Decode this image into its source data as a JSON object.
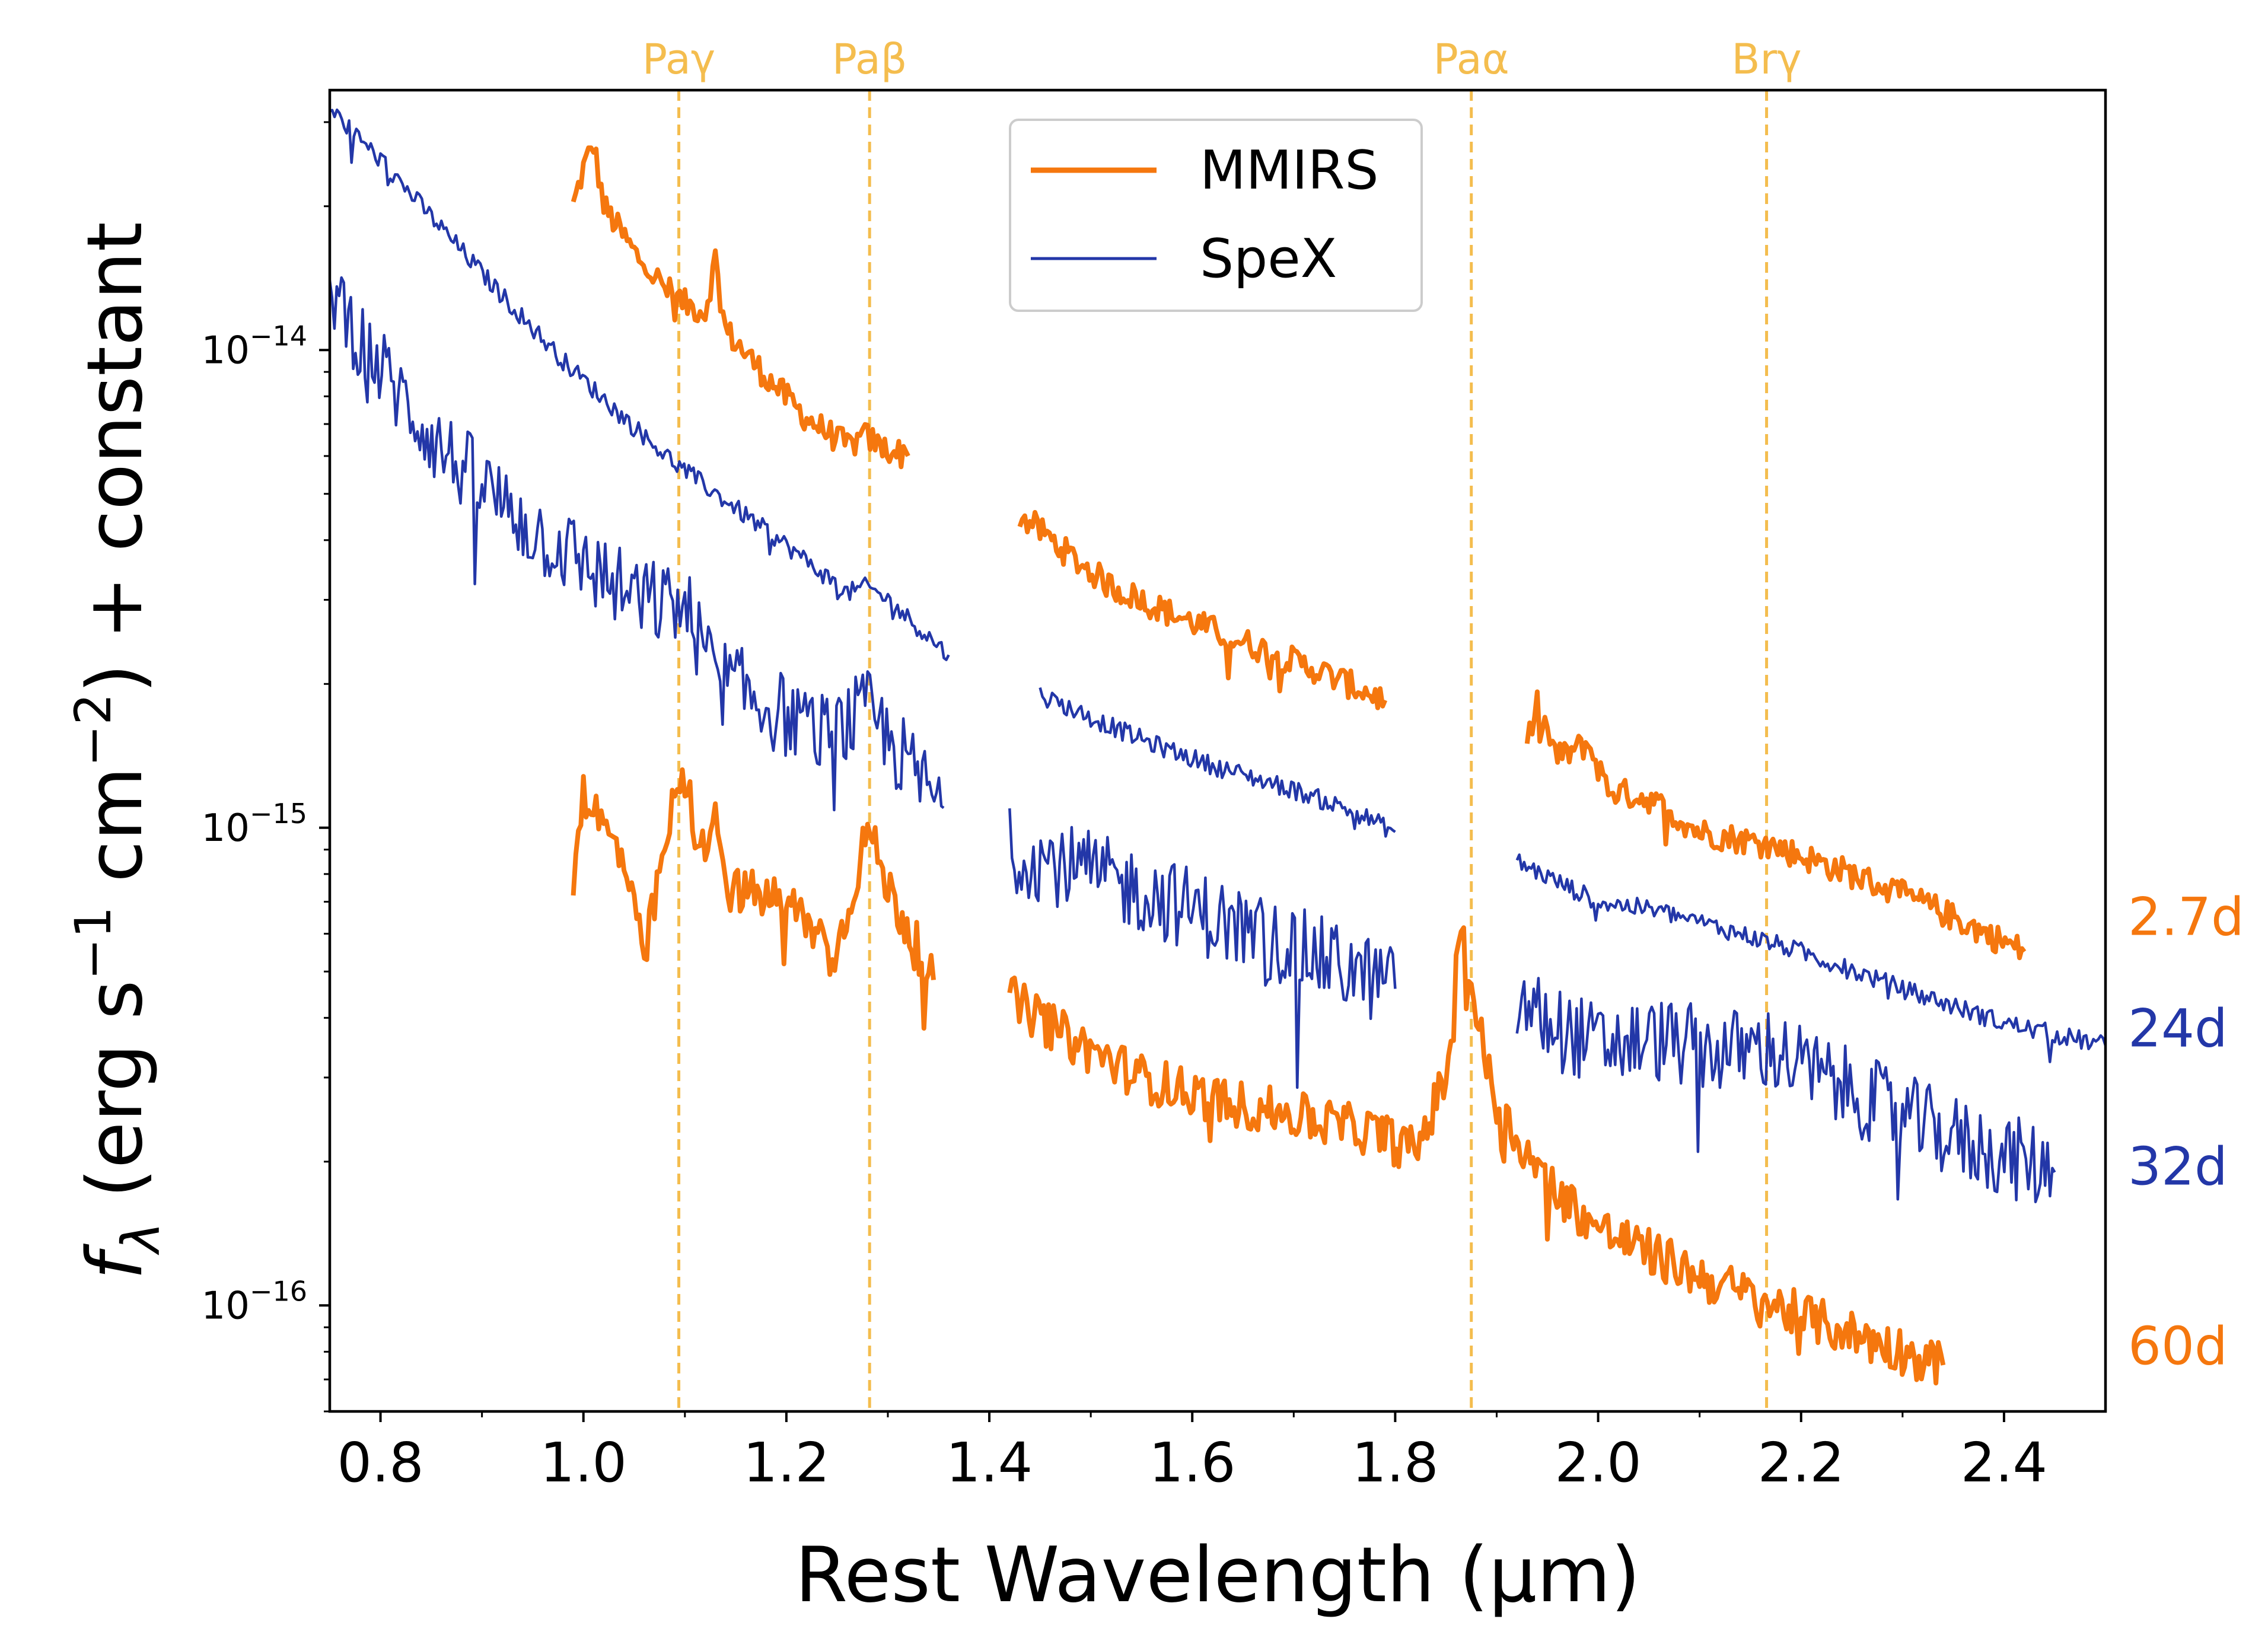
{
  "chart_data": {
    "type": "line",
    "title": "",
    "xlabel": "Rest Wavelength (μm)",
    "ylabel": "f_λ (erg s⁻¹ cm⁻²) + constant",
    "ylabel_parts": {
      "f": "f",
      "lambda_sub": "λ",
      "open": " (erg s",
      "s_exp": "−1",
      "cm": " cm",
      "cm_exp": "−2",
      "close": ") + constant"
    },
    "xlim": [
      0.75,
      2.5
    ],
    "ylim": [
      6e-17,
      3.5e-14
    ],
    "yscale": "log",
    "xticks": [
      "0.8",
      "1.0",
      "1.2",
      "1.4",
      "1.6",
      "1.8",
      "2.0",
      "2.2",
      "2.4"
    ],
    "yticks": [
      {
        "value": 1e-14,
        "base": "10",
        "exp": "−14"
      },
      {
        "value": 1e-15,
        "base": "10",
        "exp": "−15"
      },
      {
        "value": 1e-16,
        "base": "10",
        "exp": "−16"
      }
    ],
    "legend": [
      {
        "name": "MMIRS",
        "color": "#f5770e"
      },
      {
        "name": "SpeX",
        "color": "#2337a8"
      }
    ],
    "legend_position": "top-center",
    "colors": {
      "mmirs": "#f5770e",
      "spex": "#2337a8",
      "lines": "#f4bd4e"
    },
    "reference_lines": [
      {
        "label": "Paγ",
        "x": 1.094
      },
      {
        "label": "Paβ",
        "x": 1.282
      },
      {
        "label": "Paα",
        "x": 1.875
      },
      {
        "label": "Brγ",
        "x": 2.166
      }
    ],
    "epoch_labels": [
      {
        "text": "2.7d",
        "instrument": "MMIRS",
        "y": 6.5e-16
      },
      {
        "text": "24d",
        "instrument": "SpeX",
        "y": 3.8e-16
      },
      {
        "text": "32d",
        "instrument": "SpeX",
        "y": 1.95e-16
      },
      {
        "text": "60d",
        "instrument": "MMIRS",
        "y": 8.2e-17
      }
    ],
    "series": [
      {
        "name": "2.7d",
        "instrument": "MMIRS",
        "noise": 0.03,
        "segments": [
          [
            [
              0.99,
              2e-14
            ],
            [
              1.0,
              2.4e-14
            ],
            [
              1.01,
              2.7e-14
            ],
            [
              1.02,
              2e-14
            ],
            [
              1.05,
              1.6e-14
            ],
            [
              1.08,
              1.35e-14
            ],
            [
              1.1,
              1.25e-14
            ],
            [
              1.12,
              1.2e-14
            ],
            [
              1.13,
              1.55e-14
            ],
            [
              1.14,
              1.1e-14
            ],
            [
              1.18,
              8.8e-15
            ],
            [
              1.22,
              7.2e-15
            ],
            [
              1.26,
              6.3e-15
            ],
            [
              1.28,
              6.6e-15
            ],
            [
              1.29,
              6.3e-15
            ],
            [
              1.32,
              6e-15
            ]
          ],
          [
            [
              1.43,
              4.5e-15
            ],
            [
              1.45,
              4.2e-15
            ],
            [
              1.48,
              3.7e-15
            ],
            [
              1.52,
              3.2e-15
            ],
            [
              1.58,
              2.8e-15
            ],
            [
              1.65,
              2.45e-15
            ],
            [
              1.72,
              2.15e-15
            ],
            [
              1.79,
              1.85e-15
            ]
          ],
          [
            [
              1.93,
              1.5e-15
            ],
            [
              1.94,
              1.8e-15
            ],
            [
              1.96,
              1.4e-15
            ],
            [
              1.99,
              1.5e-15
            ],
            [
              2.01,
              1.2e-15
            ],
            [
              2.05,
              1.15e-15
            ],
            [
              2.1,
              9.8e-16
            ],
            [
              2.17,
              9.2e-16
            ],
            [
              2.25,
              8e-16
            ],
            [
              2.33,
              6.8e-16
            ],
            [
              2.42,
              5.5e-16
            ]
          ]
        ]
      },
      {
        "name": "24d",
        "instrument": "SpeX",
        "noise": 0.02,
        "segments": [
          [
            [
              0.75,
              3.2e-14
            ],
            [
              0.8,
              2.5e-14
            ],
            [
              0.86,
              1.8e-14
            ],
            [
              0.92,
              1.3e-14
            ],
            [
              0.98,
              9.5e-15
            ],
            [
              1.04,
              7.2e-15
            ],
            [
              1.09,
              5.8e-15
            ],
            [
              1.12,
              5.2e-15
            ],
            [
              1.16,
              4.5e-15
            ],
            [
              1.2,
              3.9e-15
            ],
            [
              1.26,
              3.1e-15
            ],
            [
              1.28,
              3.2e-15
            ],
            [
              1.3,
              3e-15
            ],
            [
              1.36,
              2.3e-15
            ]
          ],
          [
            [
              1.45,
              1.9e-15
            ],
            [
              1.5,
              1.7e-15
            ],
            [
              1.56,
              1.5e-15
            ],
            [
              1.62,
              1.35e-15
            ],
            [
              1.7,
              1.2e-15
            ],
            [
              1.76,
              1.08e-15
            ],
            [
              1.8,
              9.8e-16
            ]
          ],
          [
            [
              1.92,
              8.5e-16
            ],
            [
              1.96,
              7.7e-16
            ],
            [
              2.0,
              7e-16
            ],
            [
              2.06,
              6.7e-16
            ],
            [
              2.14,
              6e-16
            ],
            [
              2.2,
              5.5e-16
            ],
            [
              2.3,
              4.6e-16
            ],
            [
              2.4,
              3.9e-16
            ],
            [
              2.5,
              3.5e-16
            ]
          ]
        ]
      },
      {
        "name": "32d",
        "instrument": "SpeX",
        "noise": 0.09,
        "segments": [
          [
            [
              0.75,
              1.4e-14
            ],
            [
              0.78,
              1.05e-14
            ],
            [
              0.82,
              8e-15
            ],
            [
              0.86,
              6.2e-15
            ],
            [
              0.9,
              5.2e-15
            ],
            [
              0.95,
              4.2e-15
            ],
            [
              1.0,
              3.6e-15
            ],
            [
              1.05,
              3e-15
            ],
            [
              1.1,
              2.9e-15
            ],
            [
              1.13,
              2.1e-15
            ],
            [
              1.18,
              1.8e-15
            ],
            [
              1.24,
              1.55e-15
            ],
            [
              1.28,
              1.75e-15
            ],
            [
              1.32,
              1.35e-15
            ],
            [
              1.355,
              1.1e-15
            ]
          ],
          [
            [
              1.42,
              9e-16
            ],
            [
              1.5,
              8e-16
            ],
            [
              1.58,
              7e-16
            ],
            [
              1.66,
              6e-16
            ],
            [
              1.73,
              5.3e-16
            ],
            [
              1.8,
              4.6e-16
            ]
          ],
          [
            [
              1.92,
              4.3e-16
            ],
            [
              1.96,
              3.8e-16
            ],
            [
              2.0,
              3.5e-16
            ],
            [
              2.06,
              3.6e-16
            ],
            [
              2.12,
              3.4e-16
            ],
            [
              2.17,
              3.45e-16
            ],
            [
              2.22,
              3e-16
            ],
            [
              2.3,
              2.5e-16
            ],
            [
              2.36,
              2.2e-16
            ],
            [
              2.45,
              1.9e-16
            ]
          ]
        ]
      },
      {
        "name": "60d",
        "instrument": "MMIRS",
        "noise": 0.05,
        "segments": [
          [
            [
              0.99,
              8e-16
            ],
            [
              1.0,
              1.2e-15
            ],
            [
              1.02,
              1e-15
            ],
            [
              1.04,
              8.5e-16
            ],
            [
              1.06,
              5.2e-16
            ],
            [
              1.07,
              7e-16
            ],
            [
              1.09,
              1.15e-15
            ],
            [
              1.1,
              1.25e-15
            ],
            [
              1.12,
              8.5e-16
            ],
            [
              1.13,
              1.2e-15
            ],
            [
              1.14,
              7.5e-16
            ],
            [
              1.2,
              7e-16
            ],
            [
              1.25,
              5.5e-16
            ],
            [
              1.28,
              1e-15
            ],
            [
              1.3,
              7.5e-16
            ],
            [
              1.345,
              4.8e-16
            ]
          ],
          [
            [
              1.42,
              4.4e-16
            ],
            [
              1.48,
              3.6e-16
            ],
            [
              1.55,
              3e-16
            ],
            [
              1.62,
              2.7e-16
            ],
            [
              1.7,
              2.5e-16
            ],
            [
              1.78,
              2.3e-16
            ],
            [
              1.82,
              2.1e-16
            ],
            [
              1.85,
              3e-16
            ],
            [
              1.865,
              6.5e-16
            ],
            [
              1.88,
              4e-16
            ],
            [
              1.9,
              2.6e-16
            ],
            [
              1.95,
              1.8e-16
            ],
            [
              2.0,
              1.45e-16
            ],
            [
              2.1,
              1.15e-16
            ],
            [
              2.2,
              9.5e-17
            ],
            [
              2.34,
              7.5e-17
            ]
          ]
        ]
      }
    ]
  }
}
